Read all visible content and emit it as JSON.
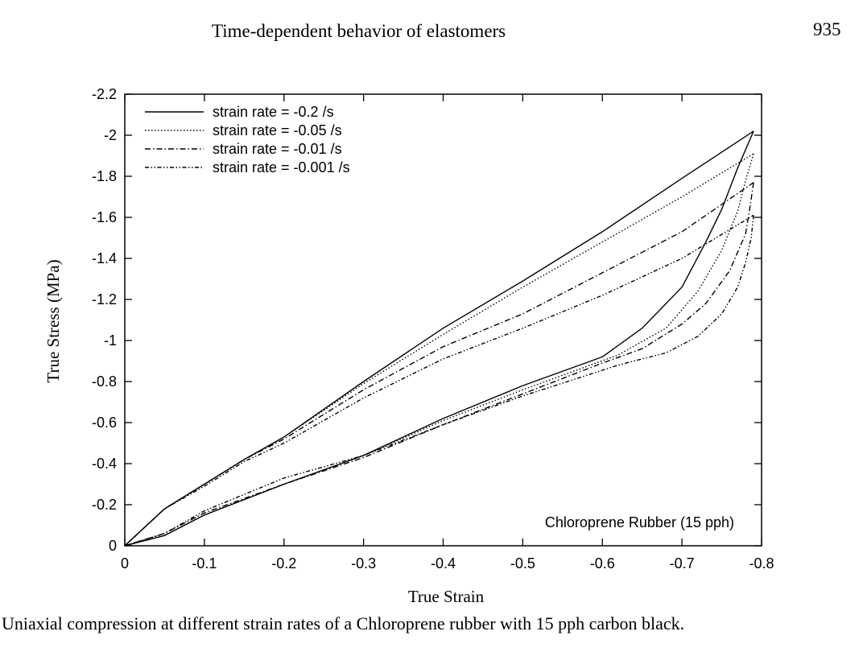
{
  "header": {
    "running_title": "Time-dependent behavior of elastomers",
    "page_number": "935"
  },
  "caption": "Uniaxial compression at different strain rates of a Chloroprene rubber with 15 pph carbon black.",
  "chart_data": {
    "type": "line",
    "title": "",
    "xlabel": "True Strain",
    "ylabel": "True Stress (MPa)",
    "xlim": [
      0,
      -0.8
    ],
    "ylim": [
      0,
      -2.2
    ],
    "xticks": [
      0,
      -0.1,
      -0.2,
      -0.3,
      -0.4,
      -0.5,
      -0.6,
      -0.7,
      -0.8
    ],
    "xtick_labels": [
      "0",
      "-0.1",
      "-0.2",
      "-0.3",
      "-0.4",
      "-0.5",
      "-0.6",
      "-0.7",
      "-0.8"
    ],
    "yticks": [
      0,
      -0.2,
      -0.4,
      -0.6,
      -0.8,
      -1,
      -1.2,
      -1.4,
      -1.6,
      -1.8,
      -2,
      -2.2
    ],
    "ytick_labels": [
      "0",
      "-0.2",
      "-0.4",
      "-0.6",
      "-0.8",
      "-1",
      "-1.2",
      "-1.4",
      "-1.6",
      "-1.8",
      "-2",
      "-2.2"
    ],
    "grid": false,
    "legend_position": "top-left",
    "annotation": "Chloroprene Rubber (15 pph)",
    "line_color": "#000000",
    "series": [
      {
        "name": "strain rate = -0.2 /s",
        "dash": "solid",
        "loading": {
          "x": [
            0,
            -0.05,
            -0.1,
            -0.15,
            -0.2,
            -0.3,
            -0.4,
            -0.5,
            -0.6,
            -0.7,
            -0.79
          ],
          "y": [
            0,
            -0.18,
            -0.3,
            -0.42,
            -0.53,
            -0.8,
            -1.06,
            -1.29,
            -1.53,
            -1.79,
            -2.02
          ]
        },
        "unloading": {
          "x": [
            -0.79,
            -0.77,
            -0.75,
            -0.73,
            -0.7,
            -0.65,
            -0.6,
            -0.5,
            -0.4,
            -0.3,
            -0.2,
            -0.1,
            -0.05,
            0
          ],
          "y": [
            -2.02,
            -1.84,
            -1.64,
            -1.48,
            -1.26,
            -1.06,
            -0.92,
            -0.78,
            -0.62,
            -0.44,
            -0.3,
            -0.15,
            -0.05,
            0
          ]
        }
      },
      {
        "name": "strain rate = -0.05 /s",
        "dash": "dotted",
        "loading": {
          "x": [
            0,
            -0.05,
            -0.1,
            -0.15,
            -0.2,
            -0.3,
            -0.4,
            -0.5,
            -0.6,
            -0.7,
            -0.79
          ],
          "y": [
            0,
            -0.18,
            -0.3,
            -0.42,
            -0.53,
            -0.79,
            -1.03,
            -1.26,
            -1.48,
            -1.7,
            -1.91
          ]
        },
        "unloading": {
          "x": [
            -0.79,
            -0.78,
            -0.77,
            -0.75,
            -0.72,
            -0.68,
            -0.62,
            -0.5,
            -0.4,
            -0.3,
            -0.2,
            -0.1,
            -0.05,
            0
          ],
          "y": [
            -1.91,
            -1.78,
            -1.63,
            -1.44,
            -1.24,
            -1.06,
            -0.93,
            -0.76,
            -0.61,
            -0.44,
            -0.3,
            -0.15,
            -0.05,
            0
          ]
        }
      },
      {
        "name": "strain rate = -0.01 /s",
        "dash": "dash-dot",
        "loading": {
          "x": [
            0,
            -0.05,
            -0.1,
            -0.15,
            -0.2,
            -0.3,
            -0.4,
            -0.5,
            -0.6,
            -0.7,
            -0.79
          ],
          "y": [
            0,
            -0.18,
            -0.3,
            -0.42,
            -0.52,
            -0.76,
            -0.97,
            -1.13,
            -1.33,
            -1.53,
            -1.77
          ]
        },
        "unloading": {
          "x": [
            -0.79,
            -0.785,
            -0.78,
            -0.76,
            -0.73,
            -0.7,
            -0.65,
            -0.6,
            -0.5,
            -0.4,
            -0.3,
            -0.2,
            -0.1,
            -0.05,
            0
          ],
          "y": [
            -1.77,
            -1.64,
            -1.52,
            -1.34,
            -1.18,
            -1.08,
            -0.96,
            -0.89,
            -0.74,
            -0.59,
            -0.43,
            -0.3,
            -0.16,
            -0.06,
            0
          ]
        }
      },
      {
        "name": "strain rate = -0.001 /s",
        "dash": "dash-dot-dot",
        "loading": {
          "x": [
            0,
            -0.05,
            -0.1,
            -0.15,
            -0.2,
            -0.3,
            -0.4,
            -0.5,
            -0.6,
            -0.7,
            -0.79
          ],
          "y": [
            0,
            -0.18,
            -0.29,
            -0.41,
            -0.5,
            -0.72,
            -0.91,
            -1.06,
            -1.22,
            -1.4,
            -1.61
          ]
        },
        "unloading": {
          "x": [
            -0.79,
            -0.787,
            -0.78,
            -0.77,
            -0.75,
            -0.72,
            -0.68,
            -0.62,
            -0.5,
            -0.4,
            -0.3,
            -0.2,
            -0.1,
            -0.05,
            0
          ],
          "y": [
            -1.61,
            -1.5,
            -1.38,
            -1.26,
            -1.13,
            -1.02,
            -0.94,
            -0.88,
            -0.73,
            -0.59,
            -0.44,
            -0.33,
            -0.17,
            -0.06,
            0
          ]
        }
      }
    ]
  }
}
